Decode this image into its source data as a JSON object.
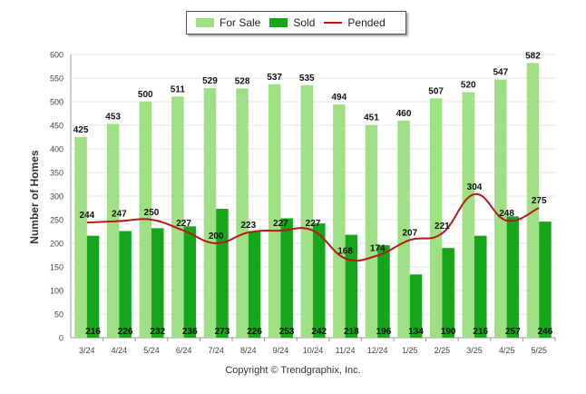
{
  "chart_data": {
    "type": "bar",
    "title": "",
    "xlabel": "",
    "ylabel": "Number of Homes",
    "ylim": [
      0,
      600
    ],
    "yticks": [
      0,
      50,
      100,
      150,
      200,
      250,
      300,
      350,
      400,
      450,
      500,
      550,
      600
    ],
    "grid": true,
    "legend_position": "top-center",
    "categories": [
      "3/24",
      "4/24",
      "5/24",
      "6/24",
      "7/24",
      "8/24",
      "9/24",
      "10/24",
      "11/24",
      "12/24",
      "1/25",
      "2/25",
      "3/25",
      "4/25",
      "5/25"
    ],
    "series": [
      {
        "name": "For Sale",
        "type": "bar",
        "color": "#9fe085",
        "values": [
          425,
          453,
          500,
          511,
          529,
          528,
          537,
          535,
          494,
          451,
          460,
          507,
          520,
          547,
          582
        ]
      },
      {
        "name": "Sold",
        "type": "bar",
        "color": "#16a61a",
        "values": [
          216,
          226,
          232,
          236,
          273,
          226,
          253,
          242,
          218,
          196,
          134,
          190,
          216,
          257,
          246
        ]
      },
      {
        "name": "Pended",
        "type": "line",
        "color": "#b81818",
        "values": [
          244,
          247,
          250,
          227,
          200,
          223,
          227,
          227,
          168,
          174,
          207,
          221,
          304,
          248,
          275
        ]
      }
    ]
  },
  "copyright": "Copyright © Trendgraphix, Inc."
}
